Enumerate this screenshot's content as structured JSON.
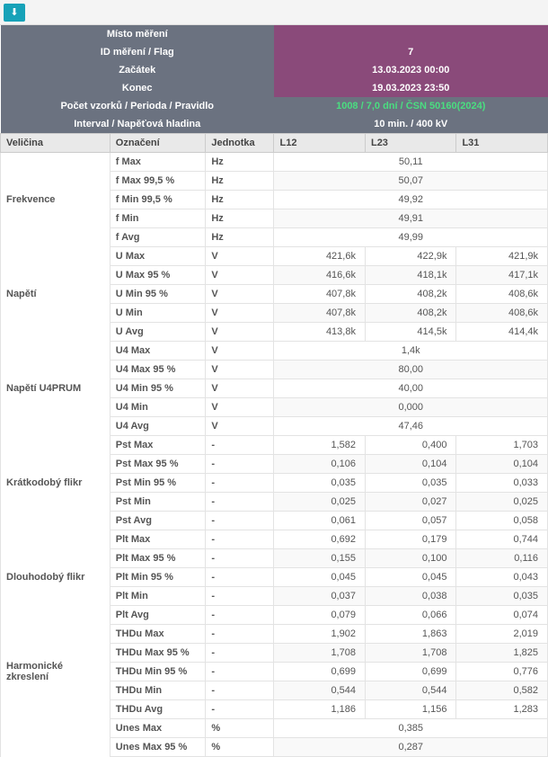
{
  "toolbar": {
    "download_icon": "⬇"
  },
  "header": {
    "misto_lbl": "Místo měření",
    "misto_val": " ",
    "id_lbl": "ID měření / Flag",
    "zacatek_lbl": "Začátek",
    "konec_lbl": "Konec",
    "id_val": "7",
    "zacatek_val": "13.03.2023 00:00",
    "konec_val": "19.03.2023 23:50",
    "pocet_lbl": "Počet vzorků / Perioda / Pravidlo",
    "pocet_val": "1008 / 7,0 dní / ČSN 50160(2024)",
    "interval_lbl": "Interval / Napěťová hladina",
    "interval_val": "10 min. / 400 kV"
  },
  "cols": {
    "velicina": "Veličina",
    "oznaceni": "Označení",
    "jednotka": "Jednotka",
    "l12": "L12",
    "l23": "L23",
    "l31": "L31"
  },
  "groups": [
    {
      "name": "Frekvence",
      "unit": "Hz",
      "rows": [
        {
          "lbl": "f Max",
          "span": "50,11"
        },
        {
          "lbl": "f Max 99,5 %",
          "span": "50,07"
        },
        {
          "lbl": "f Min 99,5 %",
          "span": "49,92"
        },
        {
          "lbl": "f Min",
          "span": "49,91"
        },
        {
          "lbl": "f Avg",
          "span": "49,99"
        }
      ]
    },
    {
      "name": "Napětí",
      "unit": "V",
      "rows": [
        {
          "lbl": "U Max",
          "v": [
            "421,6k",
            "422,9k",
            "421,9k"
          ]
        },
        {
          "lbl": "U Max 95 %",
          "v": [
            "416,6k",
            "418,1k",
            "417,1k"
          ]
        },
        {
          "lbl": "U Min 95 %",
          "v": [
            "407,8k",
            "408,2k",
            "408,6k"
          ]
        },
        {
          "lbl": "U Min",
          "v": [
            "407,8k",
            "408,2k",
            "408,6k"
          ]
        },
        {
          "lbl": "U Avg",
          "v": [
            "413,8k",
            "414,5k",
            "414,4k"
          ]
        }
      ]
    },
    {
      "name": "Napětí U4PRUM",
      "unit": "V",
      "rows": [
        {
          "lbl": "U4 Max",
          "span": "1,4k"
        },
        {
          "lbl": "U4 Max 95 %",
          "span": "80,00"
        },
        {
          "lbl": "U4 Min 95 %",
          "span": "40,00"
        },
        {
          "lbl": "U4 Min",
          "span": "0,000"
        },
        {
          "lbl": "U4 Avg",
          "span": "47,46"
        }
      ]
    },
    {
      "name": "Krátkodobý flikr",
      "unit": "-",
      "rows": [
        {
          "lbl": "Pst Max",
          "v": [
            "1,582",
            "0,400",
            "1,703"
          ]
        },
        {
          "lbl": "Pst Max 95 %",
          "v": [
            "0,106",
            "0,104",
            "0,104"
          ]
        },
        {
          "lbl": "Pst Min 95 %",
          "v": [
            "0,035",
            "0,035",
            "0,033"
          ]
        },
        {
          "lbl": "Pst Min",
          "v": [
            "0,025",
            "0,027",
            "0,025"
          ]
        },
        {
          "lbl": "Pst Avg",
          "v": [
            "0,061",
            "0,057",
            "0,058"
          ]
        }
      ]
    },
    {
      "name": "Dlouhodobý flikr",
      "unit": "-",
      "rows": [
        {
          "lbl": "Plt Max",
          "v": [
            "0,692",
            "0,179",
            "0,744"
          ]
        },
        {
          "lbl": "Plt Max 95 %",
          "v": [
            "0,155",
            "0,100",
            "0,116"
          ]
        },
        {
          "lbl": "Plt Min 95 %",
          "v": [
            "0,045",
            "0,045",
            "0,043"
          ]
        },
        {
          "lbl": "Plt Min",
          "v": [
            "0,037",
            "0,038",
            "0,035"
          ]
        },
        {
          "lbl": "Plt Avg",
          "v": [
            "0,079",
            "0,066",
            "0,074"
          ]
        }
      ]
    },
    {
      "name": "Harmonické zkreslení",
      "unit": "-",
      "rows": [
        {
          "lbl": "THDu Max",
          "v": [
            "1,902",
            "1,863",
            "2,019"
          ]
        },
        {
          "lbl": "THDu Max 95 %",
          "v": [
            "1,708",
            "1,708",
            "1,825"
          ]
        },
        {
          "lbl": "THDu Min 95 %",
          "v": [
            "0,699",
            "0,699",
            "0,776"
          ]
        },
        {
          "lbl": "THDu Min",
          "v": [
            "0,544",
            "0,544",
            "0,582"
          ]
        },
        {
          "lbl": "THDu Avg",
          "v": [
            "1,186",
            "1,156",
            "1,283"
          ]
        }
      ]
    },
    {
      "name": " ",
      "unit": "%",
      "rows": [
        {
          "lbl": "Unes Max",
          "span": "0,385"
        },
        {
          "lbl": "Unes Max 95 %",
          "span": "0,287"
        }
      ]
    }
  ]
}
